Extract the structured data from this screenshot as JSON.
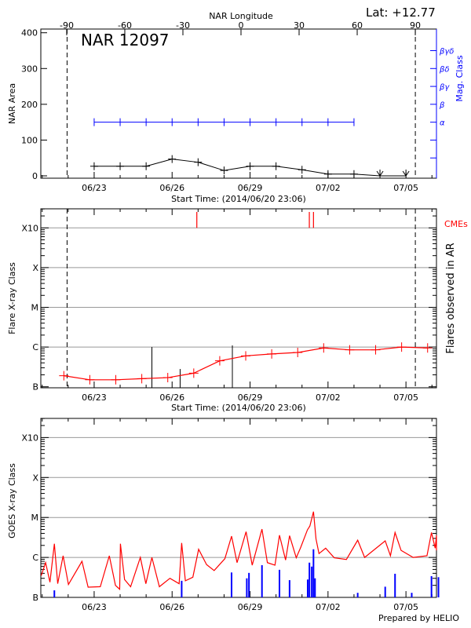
{
  "header": {
    "lat_label": "Lat: +12.77",
    "footer": "Prepared by HELIO"
  },
  "colors": {
    "area": "#000000",
    "mag_class": "#0000ff",
    "flare": "#ff0000",
    "cme": "#ff0000",
    "goes": "#ff0000",
    "goes_other": "#0000ff",
    "grid": "#999999"
  },
  "chart_data": [
    {
      "type": "line",
      "title": "NAR 12097",
      "top_axis_label": "NAR Longitude",
      "top_ticks": [
        -90,
        -60,
        -30,
        0,
        30,
        60,
        90
      ],
      "xlabel": "Start Time: (2014/06/20 23:06)",
      "x_start": "2014-06-20T23:06",
      "x_tick_labels": [
        "06/23",
        "06/26",
        "06/29",
        "07/02",
        "07/05"
      ],
      "ylabel": "NAR Area",
      "ylim": [
        0,
        400
      ],
      "y_ticks": [
        0,
        100,
        200,
        300,
        400
      ],
      "y2label": "Mag. Class",
      "y2_ticks": [
        "α",
        "β",
        "βγ",
        "βδ",
        "βγδ"
      ],
      "limb_lines": [
        {
          "longitude": -90,
          "time": "2014-06-21T23:00"
        },
        {
          "longitude": 90,
          "time": "2014-07-05T08:40"
        }
      ],
      "series": [
        {
          "key": "area",
          "x": [
            "2014-06-23T00:00",
            "2014-06-24T00:00",
            "2014-06-25T00:00",
            "2014-06-26T00:00",
            "2014-06-27T00:00",
            "2014-06-28T00:00",
            "2014-06-29T00:00",
            "2014-06-30T00:00",
            "2014-07-01T00:00",
            "2014-07-02T00:00",
            "2014-07-03T00:00",
            "2014-07-04T00:00",
            "2014-07-05T00:00"
          ],
          "values": [
            27,
            27,
            27,
            47,
            38,
            15,
            27,
            27,
            17,
            5,
            5,
            0,
            0
          ],
          "markers": [
            "plus",
            "plus",
            "plus",
            "plus",
            "plus",
            "plus",
            "plus",
            "plus",
            "plus",
            "plus",
            "plus",
            "arrow",
            "arrow"
          ]
        },
        {
          "key": "mag_class",
          "x": [
            "2014-06-23T00:00",
            "2014-06-24T00:00",
            "2014-06-25T00:00",
            "2014-06-26T00:00",
            "2014-06-27T00:00",
            "2014-06-28T00:00",
            "2014-06-29T00:00",
            "2014-06-30T00:00",
            "2014-07-01T00:00",
            "2014-07-02T00:00",
            "2014-07-03T00:00"
          ],
          "values": [
            "α",
            "α",
            "α",
            "α",
            "α",
            "α",
            "α",
            "α",
            "α",
            "α",
            "α"
          ]
        }
      ]
    },
    {
      "type": "line",
      "xlabel": "Start Time: (2014/06/20 23:06)",
      "x_start": "2014-06-20T23:06",
      "x_tick_labels": [
        "06/23",
        "06/26",
        "06/29",
        "07/02",
        "07/05"
      ],
      "ylabel": "Flare X-ray Class",
      "y2label": "Flares observed in AR",
      "y_scale": "log",
      "ylim": [
        1e-07,
        0.001
      ],
      "y_tick_labels": [
        "B",
        "C",
        "M",
        "X",
        "X10"
      ],
      "grid": true,
      "cme_label": "CMEs",
      "cmes": [
        "2014-06-26T22:50",
        "2014-07-01T06:45",
        "2014-07-01T10:35"
      ],
      "limb_lines": [
        "2014-06-21T23:00",
        "2014-07-05T08:40"
      ],
      "series": [
        {
          "key": "daily_flux",
          "x": [
            "2014-06-21T20:00",
            "2014-06-22T20:00",
            "2014-06-23T20:00",
            "2014-06-24T20:00",
            "2014-06-25T20:00",
            "2014-06-26T20:00",
            "2014-06-27T20:00",
            "2014-06-28T20:00",
            "2014-06-29T20:00",
            "2014-06-30T20:00",
            "2014-07-01T20:00",
            "2014-07-02T20:00",
            "2014-07-03T20:00",
            "2014-07-04T20:00",
            "2014-07-05T20:00"
          ],
          "values": [
            1.9e-07,
            1.5e-07,
            1.5e-07,
            1.6e-07,
            1.7e-07,
            2.2e-07,
            4.5e-07,
            6e-07,
            6.7e-07,
            7.3e-07,
            9.5e-07,
            8.5e-07,
            8.5e-07,
            1e-06,
            9.5e-07
          ]
        },
        {
          "key": "flares",
          "x": [
            "2014-06-25T05:20",
            "2014-06-26T07:25",
            "2014-06-28T07:40"
          ],
          "values": [
            1e-06,
            2.8e-07,
            1.1e-06
          ]
        }
      ]
    },
    {
      "type": "line",
      "x_start": "2014-06-20T23:06",
      "x_tick_labels": [
        "06/23",
        "06/26",
        "06/29",
        "07/02",
        "07/05"
      ],
      "ylabel": "GOES X-ray Class",
      "y_scale": "log",
      "ylim": [
        1e-07,
        0.001
      ],
      "y_tick_labels": [
        "B",
        "C",
        "M",
        "X",
        "X10"
      ],
      "grid": true,
      "series": [
        {
          "key": "goes_flux",
          "x": [
            "2014-06-20T23:06",
            "2014-06-21T03:10",
            "2014-06-21T07:10",
            "2014-06-21T11:15",
            "2014-06-21T14:20",
            "2014-06-21T19:20",
            "2014-06-22T00:15",
            "2014-06-22T12:45",
            "2014-06-22T18:25",
            "2014-06-23T05:40",
            "2014-06-23T14:00",
            "2014-06-23T19:40",
            "2014-06-23T23:35",
            "2014-06-24T00:15",
            "2014-06-24T04:05",
            "2014-06-24T09:40",
            "2014-06-24T18:40",
            "2014-06-24T23:45",
            "2014-06-25T05:20",
            "2014-06-25T12:15",
            "2014-06-25T22:00",
            "2014-06-26T06:30",
            "2014-06-26T08:50",
            "2014-06-26T12:15",
            "2014-06-26T19:10",
            "2014-06-27T00:30",
            "2014-06-27T07:50",
            "2014-06-27T14:50",
            "2014-06-28T00:45",
            "2014-06-28T06:55",
            "2014-06-28T12:00",
            "2014-06-28T20:20",
            "2014-06-29T02:00",
            "2014-06-29T11:00",
            "2014-06-29T16:00",
            "2014-06-29T23:00",
            "2014-06-30T03:10",
            "2014-06-30T08:50",
            "2014-06-30T12:30",
            "2014-06-30T18:40",
            "2014-06-30T22:50",
            "2014-07-01T05:00",
            "2014-07-01T07:15",
            "2014-07-01T10:35",
            "2014-07-01T12:55",
            "2014-07-01T15:40",
            "2014-07-01T21:50",
            "2014-07-02T05:45",
            "2014-07-02T17:00",
            "2014-07-03T03:25",
            "2014-07-03T09:50",
            "2014-07-04T04:50",
            "2014-07-04T09:40",
            "2014-07-04T13:55",
            "2014-07-04T19:30",
            "2014-07-05T06:40",
            "2014-07-05T19:25",
            "2014-07-05T23:35",
            "2014-07-06T03:00",
            "2014-07-06T06:35",
            "2014-07-06T08:00"
          ],
          "values": [
            3.5e-07,
            7.4e-07,
            2.4e-07,
            2.2e-06,
            2.2e-07,
            1.1e-06,
            2.1e-07,
            8e-07,
            1.8e-07,
            1.85e-07,
            1.1e-06,
            2e-07,
            1.6e-07,
            2.2e-06,
            2.8e-07,
            1.85e-07,
            1e-06,
            2.2e-07,
            1e-06,
            1.85e-07,
            3e-07,
            2.2e-07,
            2.3e-06,
            2.6e-07,
            3.2e-07,
            1.6e-06,
            6.6e-07,
            4.7e-07,
            9.3e-07,
            3.4e-06,
            7.4e-07,
            4.4e-06,
            6.4e-07,
            5.1e-06,
            7.4e-07,
            6.4e-07,
            3.6e-06,
            8.6e-07,
            3.5e-06,
            9.8e-07,
            1.8e-06,
            4.9e-06,
            6.1e-06,
            1.4e-05,
            2.9e-06,
            1.25e-06,
            1.7e-06,
            9.8e-07,
            8.9e-07,
            2.7e-06,
            1e-06,
            2.6e-06,
            1.1e-06,
            4.2e-06,
            1.5e-06,
            1e-06,
            1.1e-06,
            4.2e-06,
            1.7e-06,
            3.6e-06,
            1.5e-06
          ]
        },
        {
          "key": "other_flux",
          "x": [
            "2014-06-21T11:15",
            "2014-06-26T08:50",
            "2014-06-28T06:55",
            "2014-06-28T21:00",
            "2014-06-28T23:00",
            "2014-06-29T11:00",
            "2014-06-30T03:10",
            "2014-06-30T12:30",
            "2014-07-01T05:15",
            "2014-07-01T06:50",
            "2014-07-01T09:00",
            "2014-07-01T10:35",
            "2014-07-01T12:00",
            "2014-07-03T03:25",
            "2014-07-04T04:50",
            "2014-07-04T13:55",
            "2014-07-05T05:20",
            "2014-07-05T23:35",
            "2014-07-06T06:00"
          ],
          "values": [
            1.5e-07,
            2.6e-07,
            4.2e-07,
            3e-07,
            4.1e-07,
            6.4e-07,
            4.9e-07,
            2.7e-07,
            2.8e-07,
            7.4e-07,
            5.9e-07,
            1.6e-06,
            3e-07,
            1.3e-07,
            1.85e-07,
            3.9e-07,
            1.3e-07,
            3.4e-07,
            3.2e-07
          ]
        }
      ]
    }
  ]
}
